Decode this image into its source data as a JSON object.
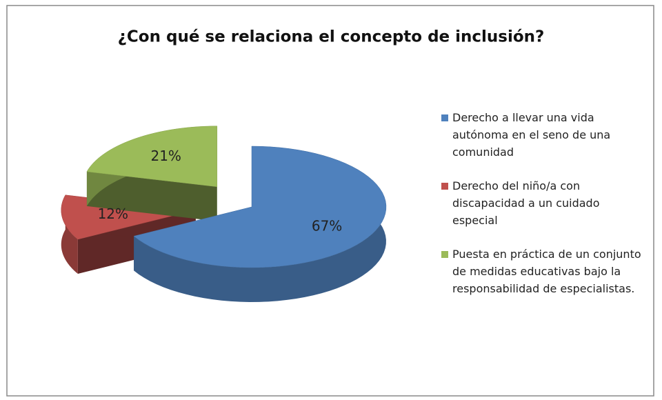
{
  "chart_data": {
    "type": "pie",
    "title": "¿Con qué se relaciona el concepto de inclusión?",
    "categories": [
      "Derecho a llevar una vida autónoma en el seno de una comunidad",
      "Derecho del niño/a con discapacidad a un cuidado especial",
      "Puesta en práctica de un conjunto de medidas educativas bajo la responsabilidad de especialistas."
    ],
    "values": [
      67,
      12,
      21
    ],
    "value_labels": [
      "67%",
      "12%",
      "21%"
    ],
    "colors": [
      "#4f81bd",
      "#c0504d",
      "#9bbb59"
    ],
    "legend": "right"
  }
}
